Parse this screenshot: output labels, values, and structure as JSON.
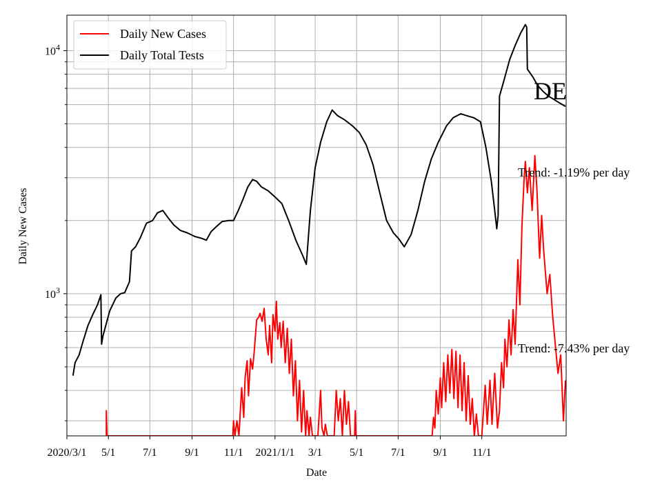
{
  "chart_data": {
    "type": "line",
    "title": "",
    "xlabel": "Date",
    "ylabel": "Daily New Cases",
    "yscale": "log",
    "ylim": [
      260,
      14000
    ],
    "xlim": [
      "2020-03-01",
      "2022-03-05"
    ],
    "grid": true,
    "legend_position": "upper-left",
    "x_ticks": [
      {
        "date": "2020-03-01",
        "label": "2020/3/1"
      },
      {
        "date": "2020-05-01",
        "label": "5/1"
      },
      {
        "date": "2020-07-01",
        "label": "7/1"
      },
      {
        "date": "2020-09-01",
        "label": "9/1"
      },
      {
        "date": "2020-11-01",
        "label": "11/1"
      },
      {
        "date": "2021-01-01",
        "label": "2021/1/1"
      },
      {
        "date": "2021-03-01",
        "label": "3/1"
      },
      {
        "date": "2021-05-01",
        "label": "5/1"
      },
      {
        "date": "2021-07-01",
        "label": "7/1"
      },
      {
        "date": "2021-09-01",
        "label": "9/1"
      },
      {
        "date": "2021-11-01",
        "label": "11/1"
      }
    ],
    "y_ticks": [
      {
        "value": 1000,
        "base": "10",
        "exp": "3"
      },
      {
        "value": 10000,
        "base": "10",
        "exp": "4"
      }
    ],
    "annotations": {
      "state": "DE",
      "trend_tests": "Trend: -1.19% per day",
      "trend_cases": "Trend: -7.43% per day"
    },
    "series": [
      {
        "name": "Daily New Cases",
        "color": "#ff0000",
        "points": [
          [
            "2020-04-28",
            260
          ],
          [
            "2020-04-28",
            330
          ],
          [
            "2020-04-29",
            260
          ],
          [
            "2020-10-31",
            260
          ],
          [
            "2020-11-01",
            300
          ],
          [
            "2020-11-03",
            260
          ],
          [
            "2020-11-06",
            300
          ],
          [
            "2020-11-09",
            260
          ],
          [
            "2020-11-11",
            330
          ],
          [
            "2020-11-13",
            410
          ],
          [
            "2020-11-16",
            310
          ],
          [
            "2020-11-18",
            450
          ],
          [
            "2020-11-21",
            530
          ],
          [
            "2020-11-23",
            380
          ],
          [
            "2020-11-26",
            540
          ],
          [
            "2020-11-29",
            490
          ],
          [
            "2020-12-01",
            560
          ],
          [
            "2020-12-05",
            780
          ],
          [
            "2020-12-08",
            800
          ],
          [
            "2020-12-10",
            830
          ],
          [
            "2020-12-13",
            770
          ],
          [
            "2020-12-16",
            870
          ],
          [
            "2020-12-19",
            650
          ],
          [
            "2020-12-22",
            560
          ],
          [
            "2020-12-24",
            740
          ],
          [
            "2020-12-27",
            520
          ],
          [
            "2020-12-29",
            820
          ],
          [
            "2021-01-01",
            700
          ],
          [
            "2021-01-03",
            930
          ],
          [
            "2021-01-05",
            650
          ],
          [
            "2021-01-08",
            760
          ],
          [
            "2021-01-10",
            600
          ],
          [
            "2021-01-13",
            770
          ],
          [
            "2021-01-16",
            520
          ],
          [
            "2021-01-19",
            720
          ],
          [
            "2021-01-22",
            470
          ],
          [
            "2021-01-25",
            650
          ],
          [
            "2021-01-28",
            380
          ],
          [
            "2021-01-31",
            530
          ],
          [
            "2021-02-03",
            300
          ],
          [
            "2021-02-06",
            440
          ],
          [
            "2021-02-09",
            270
          ],
          [
            "2021-02-12",
            400
          ],
          [
            "2021-02-15",
            260
          ],
          [
            "2021-02-17",
            330
          ],
          [
            "2021-02-20",
            260
          ],
          [
            "2021-02-22",
            310
          ],
          [
            "2021-02-25",
            260
          ],
          [
            "2021-03-05",
            260
          ],
          [
            "2021-03-09",
            400
          ],
          [
            "2021-03-11",
            280
          ],
          [
            "2021-03-14",
            260
          ],
          [
            "2021-03-16",
            290
          ],
          [
            "2021-03-19",
            260
          ],
          [
            "2021-03-29",
            260
          ],
          [
            "2021-04-01",
            400
          ],
          [
            "2021-04-04",
            300
          ],
          [
            "2021-04-07",
            370
          ],
          [
            "2021-04-10",
            260
          ],
          [
            "2021-04-13",
            400
          ],
          [
            "2021-04-16",
            290
          ],
          [
            "2021-04-19",
            360
          ],
          [
            "2021-04-22",
            260
          ],
          [
            "2021-04-28",
            260
          ],
          [
            "2021-04-29",
            330
          ],
          [
            "2021-04-30",
            260
          ],
          [
            "2021-08-20",
            260
          ],
          [
            "2021-08-22",
            310
          ],
          [
            "2021-08-24",
            280
          ],
          [
            "2021-08-26",
            400
          ],
          [
            "2021-08-29",
            320
          ],
          [
            "2021-09-01",
            450
          ],
          [
            "2021-09-03",
            340
          ],
          [
            "2021-09-06",
            520
          ],
          [
            "2021-09-09",
            360
          ],
          [
            "2021-09-12",
            560
          ],
          [
            "2021-09-15",
            390
          ],
          [
            "2021-09-18",
            590
          ],
          [
            "2021-09-21",
            370
          ],
          [
            "2021-09-24",
            580
          ],
          [
            "2021-09-27",
            340
          ],
          [
            "2021-09-30",
            560
          ],
          [
            "2021-10-03",
            330
          ],
          [
            "2021-10-06",
            520
          ],
          [
            "2021-10-09",
            300
          ],
          [
            "2021-10-12",
            460
          ],
          [
            "2021-10-15",
            290
          ],
          [
            "2021-10-18",
            370
          ],
          [
            "2021-10-21",
            260
          ],
          [
            "2021-10-24",
            320
          ],
          [
            "2021-10-27",
            260
          ],
          [
            "2021-11-01",
            260
          ],
          [
            "2021-11-06",
            420
          ],
          [
            "2021-11-09",
            290
          ],
          [
            "2021-11-13",
            440
          ],
          [
            "2021-11-16",
            290
          ],
          [
            "2021-11-20",
            470
          ],
          [
            "2021-11-24",
            280
          ],
          [
            "2021-11-27",
            330
          ],
          [
            "2021-11-30",
            520
          ],
          [
            "2021-12-03",
            410
          ],
          [
            "2021-12-05",
            650
          ],
          [
            "2021-12-08",
            500
          ],
          [
            "2021-12-11",
            780
          ],
          [
            "2021-12-14",
            560
          ],
          [
            "2021-12-17",
            860
          ],
          [
            "2021-12-20",
            620
          ],
          [
            "2021-12-24",
            1380
          ],
          [
            "2021-12-27",
            900
          ],
          [
            "2021-12-30",
            1900
          ],
          [
            "2022-01-02",
            2900
          ],
          [
            "2022-01-04",
            3500
          ],
          [
            "2022-01-07",
            2600
          ],
          [
            "2022-01-10",
            3300
          ],
          [
            "2022-01-14",
            2200
          ],
          [
            "2022-01-18",
            3700
          ],
          [
            "2022-01-21",
            2700
          ],
          [
            "2022-01-25",
            1400
          ],
          [
            "2022-01-28",
            2100
          ],
          [
            "2022-01-31",
            1500
          ],
          [
            "2022-02-05",
            1000
          ],
          [
            "2022-02-09",
            1200
          ],
          [
            "2022-02-13",
            820
          ],
          [
            "2022-02-17",
            620
          ],
          [
            "2022-02-21",
            470
          ],
          [
            "2022-02-25",
            560
          ],
          [
            "2022-03-01",
            300
          ],
          [
            "2022-03-04",
            440
          ]
        ]
      },
      {
        "name": "Daily Total Tests",
        "color": "#000000",
        "points": [
          [
            "2020-03-10",
            460
          ],
          [
            "2020-03-13",
            520
          ],
          [
            "2020-03-19",
            560
          ],
          [
            "2020-03-25",
            640
          ],
          [
            "2020-04-01",
            740
          ],
          [
            "2020-04-08",
            820
          ],
          [
            "2020-04-15",
            900
          ],
          [
            "2020-04-20",
            990
          ],
          [
            "2020-04-21",
            620
          ],
          [
            "2020-04-23",
            670
          ],
          [
            "2020-05-03",
            850
          ],
          [
            "2020-05-12",
            960
          ],
          [
            "2020-05-19",
            1000
          ],
          [
            "2020-05-25",
            1010
          ],
          [
            "2020-06-01",
            1120
          ],
          [
            "2020-06-04",
            1500
          ],
          [
            "2020-06-10",
            1560
          ],
          [
            "2020-06-17",
            1700
          ],
          [
            "2020-06-26",
            1950
          ],
          [
            "2020-07-05",
            2000
          ],
          [
            "2020-07-12",
            2150
          ],
          [
            "2020-07-20",
            2200
          ],
          [
            "2020-07-28",
            2050
          ],
          [
            "2020-08-05",
            1920
          ],
          [
            "2020-08-15",
            1820
          ],
          [
            "2020-08-25",
            1780
          ],
          [
            "2020-09-05",
            1720
          ],
          [
            "2020-09-15",
            1690
          ],
          [
            "2020-09-22",
            1660
          ],
          [
            "2020-09-29",
            1800
          ],
          [
            "2020-10-06",
            1880
          ],
          [
            "2020-10-15",
            1980
          ],
          [
            "2020-10-25",
            2000
          ],
          [
            "2020-11-01",
            2000
          ],
          [
            "2020-11-08",
            2200
          ],
          [
            "2020-11-15",
            2450
          ],
          [
            "2020-11-22",
            2750
          ],
          [
            "2020-11-29",
            2950
          ],
          [
            "2020-12-05",
            2900
          ],
          [
            "2020-12-12",
            2750
          ],
          [
            "2020-12-22",
            2650
          ],
          [
            "2021-01-01",
            2500
          ],
          [
            "2021-01-11",
            2350
          ],
          [
            "2021-01-21",
            2000
          ],
          [
            "2021-02-01",
            1650
          ],
          [
            "2021-02-10",
            1450
          ],
          [
            "2021-02-16",
            1320
          ],
          [
            "2021-02-22",
            2200
          ],
          [
            "2021-03-01",
            3300
          ],
          [
            "2021-03-09",
            4200
          ],
          [
            "2021-03-18",
            5100
          ],
          [
            "2021-03-26",
            5700
          ],
          [
            "2021-04-03",
            5400
          ],
          [
            "2021-04-13",
            5200
          ],
          [
            "2021-04-25",
            4900
          ],
          [
            "2021-05-05",
            4600
          ],
          [
            "2021-05-15",
            4100
          ],
          [
            "2021-05-25",
            3400
          ],
          [
            "2021-06-04",
            2600
          ],
          [
            "2021-06-14",
            2000
          ],
          [
            "2021-06-24",
            1780
          ],
          [
            "2021-07-02",
            1680
          ],
          [
            "2021-07-10",
            1560
          ],
          [
            "2021-07-20",
            1750
          ],
          [
            "2021-07-30",
            2200
          ],
          [
            "2021-08-09",
            2900
          ],
          [
            "2021-08-19",
            3600
          ],
          [
            "2021-08-29",
            4200
          ],
          [
            "2021-09-10",
            4900
          ],
          [
            "2021-09-20",
            5300
          ],
          [
            "2021-10-01",
            5500
          ],
          [
            "2021-10-10",
            5400
          ],
          [
            "2021-10-20",
            5300
          ],
          [
            "2021-10-30",
            5100
          ],
          [
            "2021-11-07",
            4000
          ],
          [
            "2021-11-15",
            2900
          ],
          [
            "2021-11-20",
            2200
          ],
          [
            "2021-11-23",
            1850
          ],
          [
            "2021-11-25",
            2100
          ],
          [
            "2021-11-27",
            6500
          ],
          [
            "2021-12-05",
            7800
          ],
          [
            "2021-12-12",
            9200
          ],
          [
            "2021-12-20",
            10500
          ],
          [
            "2021-12-28",
            11800
          ],
          [
            "2022-01-04",
            12800
          ],
          [
            "2022-01-06",
            12500
          ],
          [
            "2022-01-07",
            8400
          ],
          [
            "2022-01-15",
            7800
          ],
          [
            "2022-01-22",
            7200
          ],
          [
            "2022-01-30",
            6800
          ],
          [
            "2022-02-07",
            6500
          ],
          [
            "2022-02-15",
            6300
          ],
          [
            "2022-02-23",
            6100
          ],
          [
            "2022-03-04",
            5900
          ]
        ]
      }
    ]
  }
}
